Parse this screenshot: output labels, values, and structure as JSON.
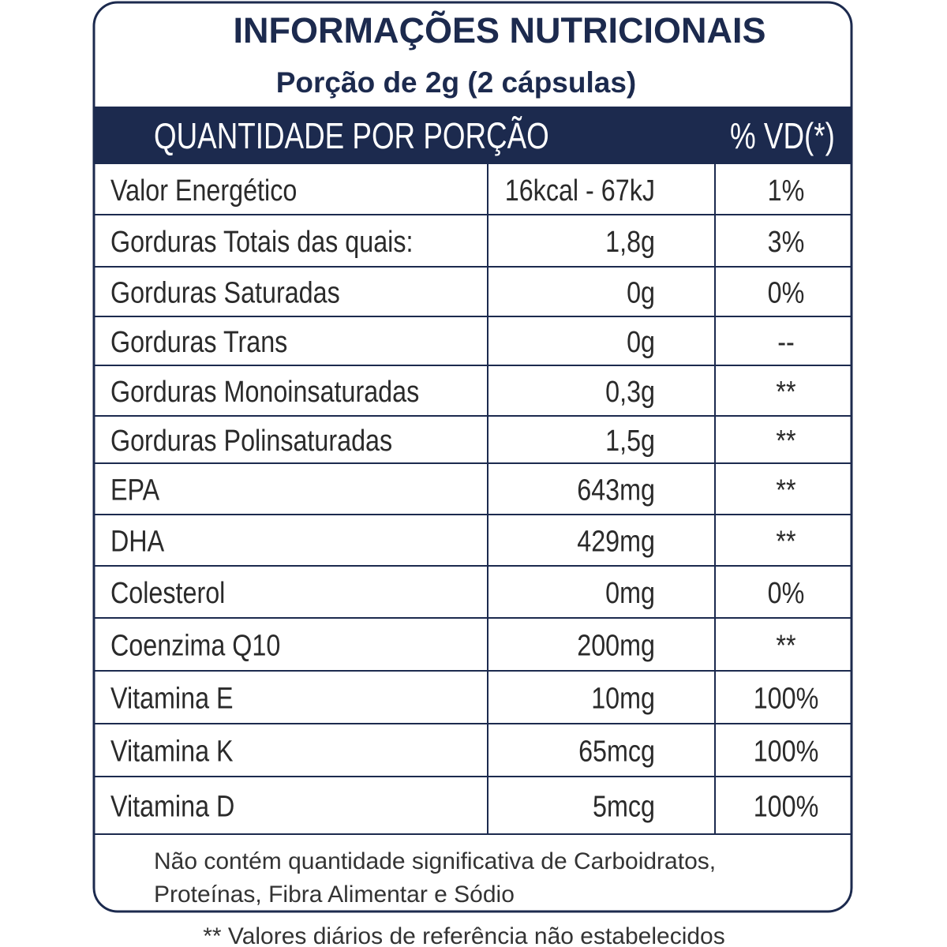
{
  "header": {
    "title": "INFORMAÇÕES NUTRICIONAIS",
    "subtitle": "Porção de 2g (2 cápsulas)"
  },
  "table": {
    "columns": [
      "QUANTIDADE POR PORÇÃO",
      "% VD(*)"
    ],
    "rows": [
      [
        "Valor Energético",
        "16kcal - 67kJ",
        "1%"
      ],
      [
        "Gorduras Totais das quais:",
        "1,8g",
        "3%"
      ],
      [
        "Gorduras Saturadas",
        "0g",
        "0%"
      ],
      [
        "Gorduras Trans",
        "0g",
        "--"
      ],
      [
        "Gorduras Monoinsaturadas",
        "0,3g",
        "**"
      ],
      [
        "Gorduras Polinsaturadas",
        "1,5g",
        "**"
      ],
      [
        "EPA",
        "643mg",
        "**"
      ],
      [
        "DHA",
        "429mg",
        "**"
      ],
      [
        "Colesterol",
        "0mg",
        "0%"
      ],
      [
        "Coenzima Q10",
        "200mg",
        "**"
      ],
      [
        "Vitamina E",
        "10mg",
        "100%"
      ],
      [
        "Vitamina K",
        "65mcg",
        "100%"
      ],
      [
        "Vitamina D",
        "5mcg",
        "100%"
      ]
    ]
  },
  "footer": {
    "note": [
      "Não contém quantidade significativa de Carboidratos,",
      "Proteínas, Fibra Alimentar e Sódio"
    ],
    "footnote": "** Valores diários de referência não estabelecidos"
  }
}
